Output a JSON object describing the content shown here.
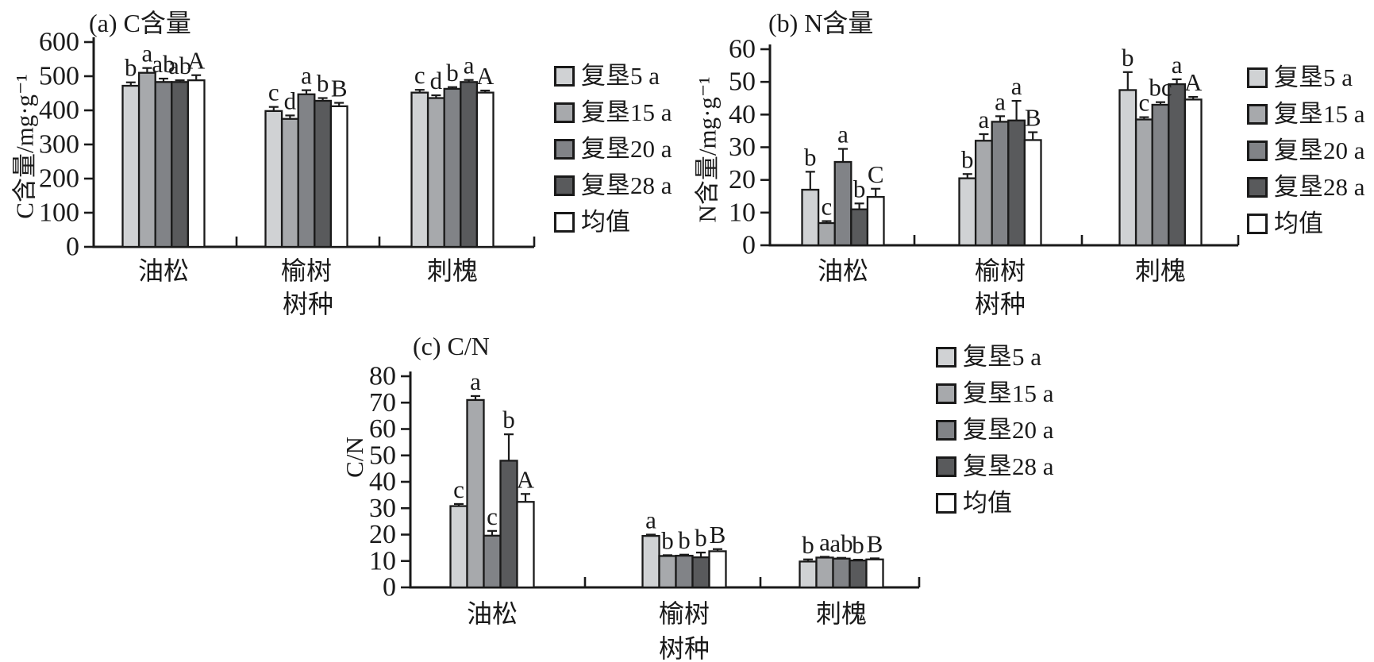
{
  "legend": {
    "labels": [
      "复垦5 a",
      "复垦15 a",
      "复垦20 a",
      "复垦28 a",
      "均值"
    ],
    "colors": [
      "#d0d2d4",
      "#a7a9ac",
      "#818387",
      "#595a5c",
      "#ffffff"
    ],
    "border": "#1a1a1a"
  },
  "chart_data": [
    {
      "type": "bar",
      "title": "(a) C含量",
      "ylabel": "C含量/mg·g⁻¹",
      "xlabel": "树种",
      "categories": [
        "油松",
        "榆树",
        "刺槐"
      ],
      "ylim": [
        0,
        600
      ],
      "ytick_step": 100,
      "grid": false,
      "legend_position": "right",
      "series": [
        {
          "name": "复垦5 a",
          "values": [
            472,
            398,
            452
          ],
          "errors": [
            10,
            12,
            8
          ],
          "sig": [
            "b",
            "c",
            "c"
          ]
        },
        {
          "name": "复垦15 a",
          "values": [
            510,
            375,
            436
          ],
          "errors": [
            14,
            10,
            8
          ],
          "sig": [
            "a",
            "d",
            "d"
          ]
        },
        {
          "name": "复垦20 a",
          "values": [
            483,
            447,
            463
          ],
          "errors": [
            10,
            12,
            5
          ],
          "sig": [
            "ab",
            "a",
            "b"
          ]
        },
        {
          "name": "复垦28 a",
          "values": [
            483,
            428,
            483
          ],
          "errors": [
            5,
            8,
            6
          ],
          "sig": [
            "ab",
            "b",
            "a"
          ]
        },
        {
          "name": "均值",
          "values": [
            488,
            412,
            452
          ],
          "errors": [
            15,
            10,
            6
          ],
          "sig": [
            "A",
            "B",
            "A"
          ]
        }
      ]
    },
    {
      "type": "bar",
      "title": "(b) N含量",
      "ylabel": "N含量/mg·g⁻¹",
      "xlabel": "树种",
      "categories": [
        "油松",
        "榆树",
        "刺槐"
      ],
      "ylim": [
        0,
        60
      ],
      "ytick_step": 10,
      "grid": false,
      "legend_position": "right",
      "series": [
        {
          "name": "复垦5 a",
          "values": [
            17,
            20.5,
            47.5
          ],
          "errors": [
            5.5,
            1.3,
            5.5
          ],
          "sig": [
            "b",
            "b",
            "b"
          ]
        },
        {
          "name": "复垦15 a",
          "values": [
            6.8,
            32,
            38.5
          ],
          "errors": [
            0.6,
            2,
            0.7
          ],
          "sig": [
            "c",
            "a",
            "c"
          ]
        },
        {
          "name": "复垦20 a",
          "values": [
            25.5,
            37.8,
            43
          ],
          "errors": [
            4,
            1.7,
            0.8
          ],
          "sig": [
            "a",
            "a",
            "bc"
          ]
        },
        {
          "name": "复垦28 a",
          "values": [
            11,
            38.2,
            49.3
          ],
          "errors": [
            1.8,
            6,
            1.5
          ],
          "sig": [
            "b",
            "a",
            "a"
          ]
        },
        {
          "name": "均值",
          "values": [
            14.8,
            32.2,
            44.6
          ],
          "errors": [
            2.5,
            2.4,
            0.8
          ],
          "sig": [
            "C",
            "B",
            "A"
          ]
        }
      ]
    },
    {
      "type": "bar",
      "title": "(c) C/N",
      "ylabel": "C/N",
      "xlabel": "树种",
      "categories": [
        "油松",
        "榆树",
        "刺槐"
      ],
      "ylim": [
        0,
        80
      ],
      "ytick_step": 10,
      "grid": false,
      "legend_position": "right",
      "series": [
        {
          "name": "复垦5 a",
          "values": [
            30.8,
            19.5,
            9.8
          ],
          "errors": [
            0.8,
            0.5,
            0.8
          ],
          "sig": [
            "c",
            "a",
            "b"
          ]
        },
        {
          "name": "复垦15 a",
          "values": [
            71,
            11.9,
            11.3
          ],
          "errors": [
            1.5,
            0.3,
            0.3
          ],
          "sig": [
            "a",
            "b",
            "a"
          ]
        },
        {
          "name": "复垦20 a",
          "values": [
            19.6,
            12,
            10.9
          ],
          "errors": [
            1.8,
            0.4,
            0.3
          ],
          "sig": [
            "c",
            "b",
            "ab"
          ]
        },
        {
          "name": "复垦28 a",
          "values": [
            48,
            11.4,
            10.2
          ],
          "errors": [
            10,
            1.8,
            0.3
          ],
          "sig": [
            "b",
            "b",
            "b"
          ]
        },
        {
          "name": "均值",
          "values": [
            32.4,
            13.7,
            10.6
          ],
          "errors": [
            3,
            0.8,
            0.4
          ],
          "sig": [
            "A",
            "B",
            "B"
          ]
        }
      ]
    }
  ]
}
